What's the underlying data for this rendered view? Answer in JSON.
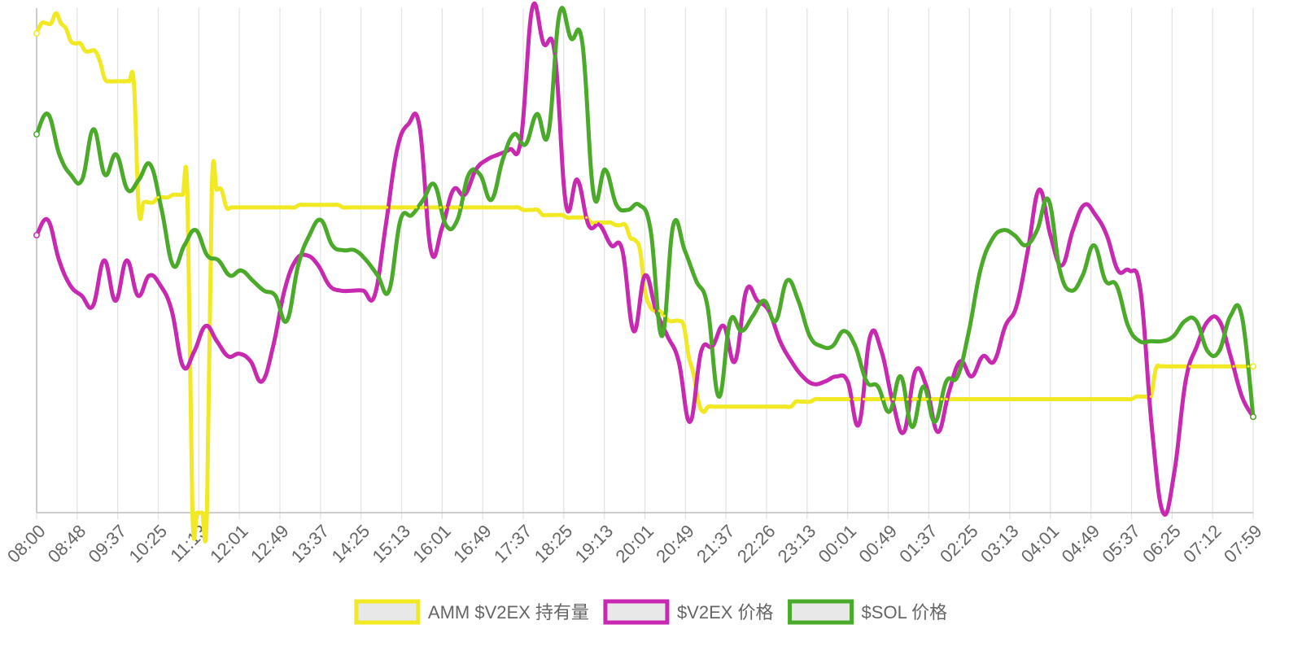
{
  "colors": {
    "grid": "#e2e2e2",
    "axis": "#bdbdbd",
    "tick_text": "#666666",
    "legend_box_fill": "#e8e8e8"
  },
  "chart_data": {
    "type": "line",
    "smooth": true,
    "grid": true,
    "legend_position": "bottom",
    "x_tick_labels": [
      "08:00",
      "08:48",
      "09:37",
      "10:25",
      "11:13",
      "12:01",
      "12:49",
      "13:37",
      "14:25",
      "15:13",
      "16:01",
      "16:49",
      "17:37",
      "18:25",
      "19:13",
      "20:01",
      "20:49",
      "21:37",
      "22:26",
      "23:13",
      "00:01",
      "00:49",
      "01:37",
      "02:25",
      "03:13",
      "04:01",
      "04:49",
      "05:37",
      "06:25",
      "07:12",
      "07:59"
    ],
    "series": [
      {
        "name": "AMM $V2EX 持有量",
        "color": "#f0e923",
        "values": [
          95,
          97,
          97,
          97,
          99,
          97,
          96,
          93.5,
          93,
          93,
          91.5,
          91.5,
          91.5,
          89.5,
          86,
          85.5,
          85.5,
          85.5,
          85.5,
          85.5,
          85,
          60,
          61.5,
          61.5,
          61.5,
          62.5,
          62.5,
          62.5,
          63,
          63,
          63,
          63,
          0.5,
          0,
          0,
          0,
          64,
          64,
          64,
          60.5,
          60.5,
          60.5,
          60.5,
          60.5,
          60.5,
          60.5,
          60.5,
          60.5,
          60.5,
          60.5,
          60.5,
          60.5,
          60.5,
          60.5,
          61,
          61,
          61,
          61,
          61,
          61,
          61,
          61,
          61,
          60.5,
          60.5,
          60.5,
          60.5,
          60.5,
          60.5,
          60.5,
          60.5,
          60.5,
          60.5,
          60.5,
          60.5,
          60.5,
          60.5,
          60.5,
          60.5,
          60.5,
          60.5,
          60.5,
          60.5,
          60.5,
          60.5,
          60.5,
          60.5,
          60.5,
          60.5,
          60.5,
          60.5,
          60.5,
          60.5,
          60.5,
          60.5,
          60.5,
          60.5,
          60.5,
          60.5,
          60.5,
          60,
          60,
          60,
          60,
          59,
          59,
          59,
          59,
          59,
          58.5,
          58.5,
          58.5,
          58.5,
          58.5,
          57.5,
          57.5,
          57.5,
          57.5,
          57.5,
          57,
          57,
          57,
          54.5,
          54,
          52,
          44,
          41,
          40,
          40,
          39,
          38,
          38,
          38,
          37,
          31,
          27.5,
          22,
          20,
          21,
          21,
          21,
          21,
          21,
          21,
          21,
          21,
          21,
          21,
          21,
          21,
          21,
          21,
          21,
          21,
          21,
          21,
          22,
          22,
          22,
          22,
          22.5,
          22.5,
          22.5,
          22.5,
          22.5,
          22.5,
          22.5,
          22.5,
          22.5,
          22.5,
          22.5,
          22.5,
          22.5,
          22.5,
          22.5,
          22.5,
          22.5,
          22.5,
          22.5,
          22.5,
          22.5,
          22.5,
          22.5,
          22.5,
          22.5,
          22.5,
          22.5,
          22.5,
          22.5,
          22.5,
          22.5,
          22.5,
          22.5,
          22.5,
          22.5,
          22.5,
          22.5,
          22.5,
          22.5,
          22.5,
          22.5,
          22.5,
          22.5,
          22.5,
          22.5,
          22.5,
          22.5,
          22.5,
          22.5,
          22.5,
          22.5,
          22.5,
          22.5,
          22.5,
          22.5,
          22.5,
          22.5,
          22.5,
          22.5,
          22.5,
          22.5,
          22.5,
          22.5,
          22.5,
          22.5,
          22.5,
          23,
          23,
          23,
          23,
          28.5,
          29,
          29,
          29,
          29,
          29,
          29,
          29,
          29,
          29,
          29,
          29,
          29,
          29,
          29,
          29,
          29,
          29,
          29,
          29,
          29
        ]
      },
      {
        "name": "$V2EX 价格",
        "color": "#c72ab0",
        "values": [
          55,
          58,
          50,
          45,
          43,
          41,
          50,
          42,
          50,
          43,
          47,
          45,
          40,
          29,
          32,
          37,
          34,
          31,
          31.5,
          30,
          26,
          33,
          44,
          50,
          51,
          49,
          45,
          44,
          44,
          44,
          43,
          57,
          72,
          77,
          76.5,
          52,
          56.5,
          64,
          63,
          68,
          70,
          71,
          72,
          74,
          100,
          93,
          91,
          61,
          66,
          57,
          57,
          53,
          52,
          36,
          47,
          40,
          35,
          30,
          18,
          32,
          33,
          37,
          30,
          44,
          42,
          40,
          34,
          30,
          27,
          25.5,
          26,
          27,
          26,
          17.5,
          35,
          32,
          22,
          16,
          28,
          25,
          16,
          24,
          30,
          27,
          31,
          30,
          37,
          41,
          52,
          64,
          55,
          49,
          56,
          61,
          59,
          55,
          48,
          48,
          44,
          17,
          0,
          8,
          26,
          33,
          38,
          38,
          31,
          23,
          19
        ]
      },
      {
        "name": "$SOL 价格",
        "color": "#4caa2b",
        "values": [
          75,
          79,
          71,
          67,
          66,
          76,
          67,
          71,
          64,
          66,
          69,
          60,
          49,
          53,
          56,
          51,
          50,
          47,
          48,
          46,
          44,
          43,
          38,
          49,
          55,
          58,
          53,
          52,
          52,
          50,
          47,
          44,
          58,
          59,
          62,
          65,
          57,
          58,
          67,
          67,
          62,
          70,
          75,
          73,
          79,
          75,
          99,
          94,
          93,
          63,
          68,
          61,
          60,
          61,
          56,
          35,
          57,
          52,
          46,
          41,
          23,
          38,
          36,
          39,
          42,
          38,
          46,
          42,
          35,
          33,
          33,
          36,
          33,
          26,
          25,
          20,
          27,
          17,
          25,
          18,
          26,
          27,
          36,
          48,
          54,
          56,
          55,
          53,
          56,
          62,
          48,
          44,
          47,
          53,
          46,
          45,
          37,
          34,
          34,
          34,
          35,
          38,
          38,
          32,
          32,
          39,
          39,
          19
        ]
      }
    ]
  }
}
